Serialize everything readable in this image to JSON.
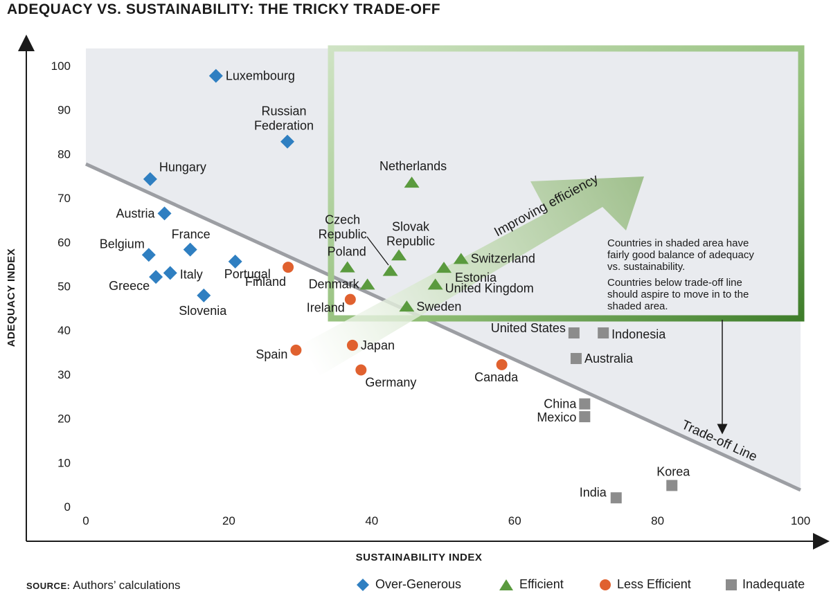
{
  "title": "ADEQUACY VS. SUSTAINABILITY: THE TRICKY TRADE-OFF",
  "source": {
    "label": "SOURCE:",
    "text": "Authors’ calculations"
  },
  "arrow_label": "Improving efficiency",
  "tradeoff_label": "Trade-off Line",
  "note": {
    "lines1": [
      "Countries in shaded area have",
      "fairly good balance of adequacy",
      "vs. sustainability."
    ],
    "lines2": [
      "Countries below trade-off line",
      "should aspire to move in to the",
      "shaded area."
    ]
  },
  "colors": {
    "over_generous": "#2f7fc1",
    "efficient": "#5a9a3e",
    "less_efficient": "#e0612f",
    "inadequate": "#8c8c8c",
    "shade": "#e9ebef",
    "frame": "#4f8a3a",
    "axis": "#1a1a1a"
  },
  "chart_data": {
    "type": "scatter",
    "xlabel": "SUSTAINABILITY INDEX",
    "ylabel": "ADEQUACY INDEX",
    "xlim": [
      0,
      100
    ],
    "ylim": [
      0,
      100
    ],
    "xticks": [
      0,
      20,
      40,
      60,
      80,
      100
    ],
    "yticks": [
      0,
      10,
      20,
      30,
      40,
      50,
      60,
      70,
      80,
      90,
      100
    ],
    "grid": false,
    "legend_position": "bottom",
    "tradeoff_line": [
      [
        0,
        77
      ],
      [
        100,
        4
      ]
    ],
    "series": [
      {
        "name": "Over-Generous",
        "marker": "diamond",
        "points": [
          {
            "label": "Luxembourg",
            "x": 18.2,
            "y": 97.7
          },
          {
            "label": "Russian Federation",
            "x": 28.2,
            "y": 82.8
          },
          {
            "label": "Hungary",
            "x": 9.0,
            "y": 74.3
          },
          {
            "label": "Austria",
            "x": 11.0,
            "y": 66.5
          },
          {
            "label": "France",
            "x": 14.6,
            "y": 58.3
          },
          {
            "label": "Belgium",
            "x": 8.8,
            "y": 57.1
          },
          {
            "label": "Portugal",
            "x": 20.9,
            "y": 55.6
          },
          {
            "label": "Italy",
            "x": 11.8,
            "y": 53.0
          },
          {
            "label": "Greece",
            "x": 9.8,
            "y": 52.1
          },
          {
            "label": "Slovenia",
            "x": 16.5,
            "y": 47.9
          }
        ]
      },
      {
        "name": "Efficient",
        "marker": "triangle",
        "points": [
          {
            "label": "Netherlands",
            "x": 45.6,
            "y": 73.6
          },
          {
            "label": "Slovak Republic",
            "x": 43.8,
            "y": 57.1
          },
          {
            "label": "Switzerland",
            "x": 52.5,
            "y": 56.3
          },
          {
            "label": "Poland",
            "x": 36.6,
            "y": 54.4
          },
          {
            "label": "Estonia",
            "x": 50.1,
            "y": 54.3
          },
          {
            "label": "Czech Republic",
            "x": 42.6,
            "y": 53.6
          },
          {
            "label": "Denmark",
            "x": 39.4,
            "y": 50.5
          },
          {
            "label": "United Kingdom",
            "x": 48.9,
            "y": 50.5
          },
          {
            "label": "Sweden",
            "x": 44.9,
            "y": 45.5
          }
        ]
      },
      {
        "name": "Less Efficient",
        "marker": "circle",
        "points": [
          {
            "label": "Finland",
            "x": 28.3,
            "y": 54.3
          },
          {
            "label": "Ireland",
            "x": 37.0,
            "y": 47.0
          },
          {
            "label": "Japan",
            "x": 37.3,
            "y": 36.6
          },
          {
            "label": "Spain",
            "x": 29.4,
            "y": 35.5
          },
          {
            "label": "Germany",
            "x": 38.5,
            "y": 31.0
          },
          {
            "label": "Canada",
            "x": 58.2,
            "y": 32.2
          }
        ]
      },
      {
        "name": "Inadequate",
        "marker": "square",
        "points": [
          {
            "label": "United States",
            "x": 68.3,
            "y": 39.4
          },
          {
            "label": "Indonesia",
            "x": 72.4,
            "y": 39.4
          },
          {
            "label": "Australia",
            "x": 68.6,
            "y": 33.6
          },
          {
            "label": "China",
            "x": 69.8,
            "y": 23.3
          },
          {
            "label": "Mexico",
            "x": 69.8,
            "y": 20.4
          },
          {
            "label": "Korea",
            "x": 82.0,
            "y": 4.8
          },
          {
            "label": "India",
            "x": 74.2,
            "y": 2.0
          }
        ]
      }
    ]
  }
}
